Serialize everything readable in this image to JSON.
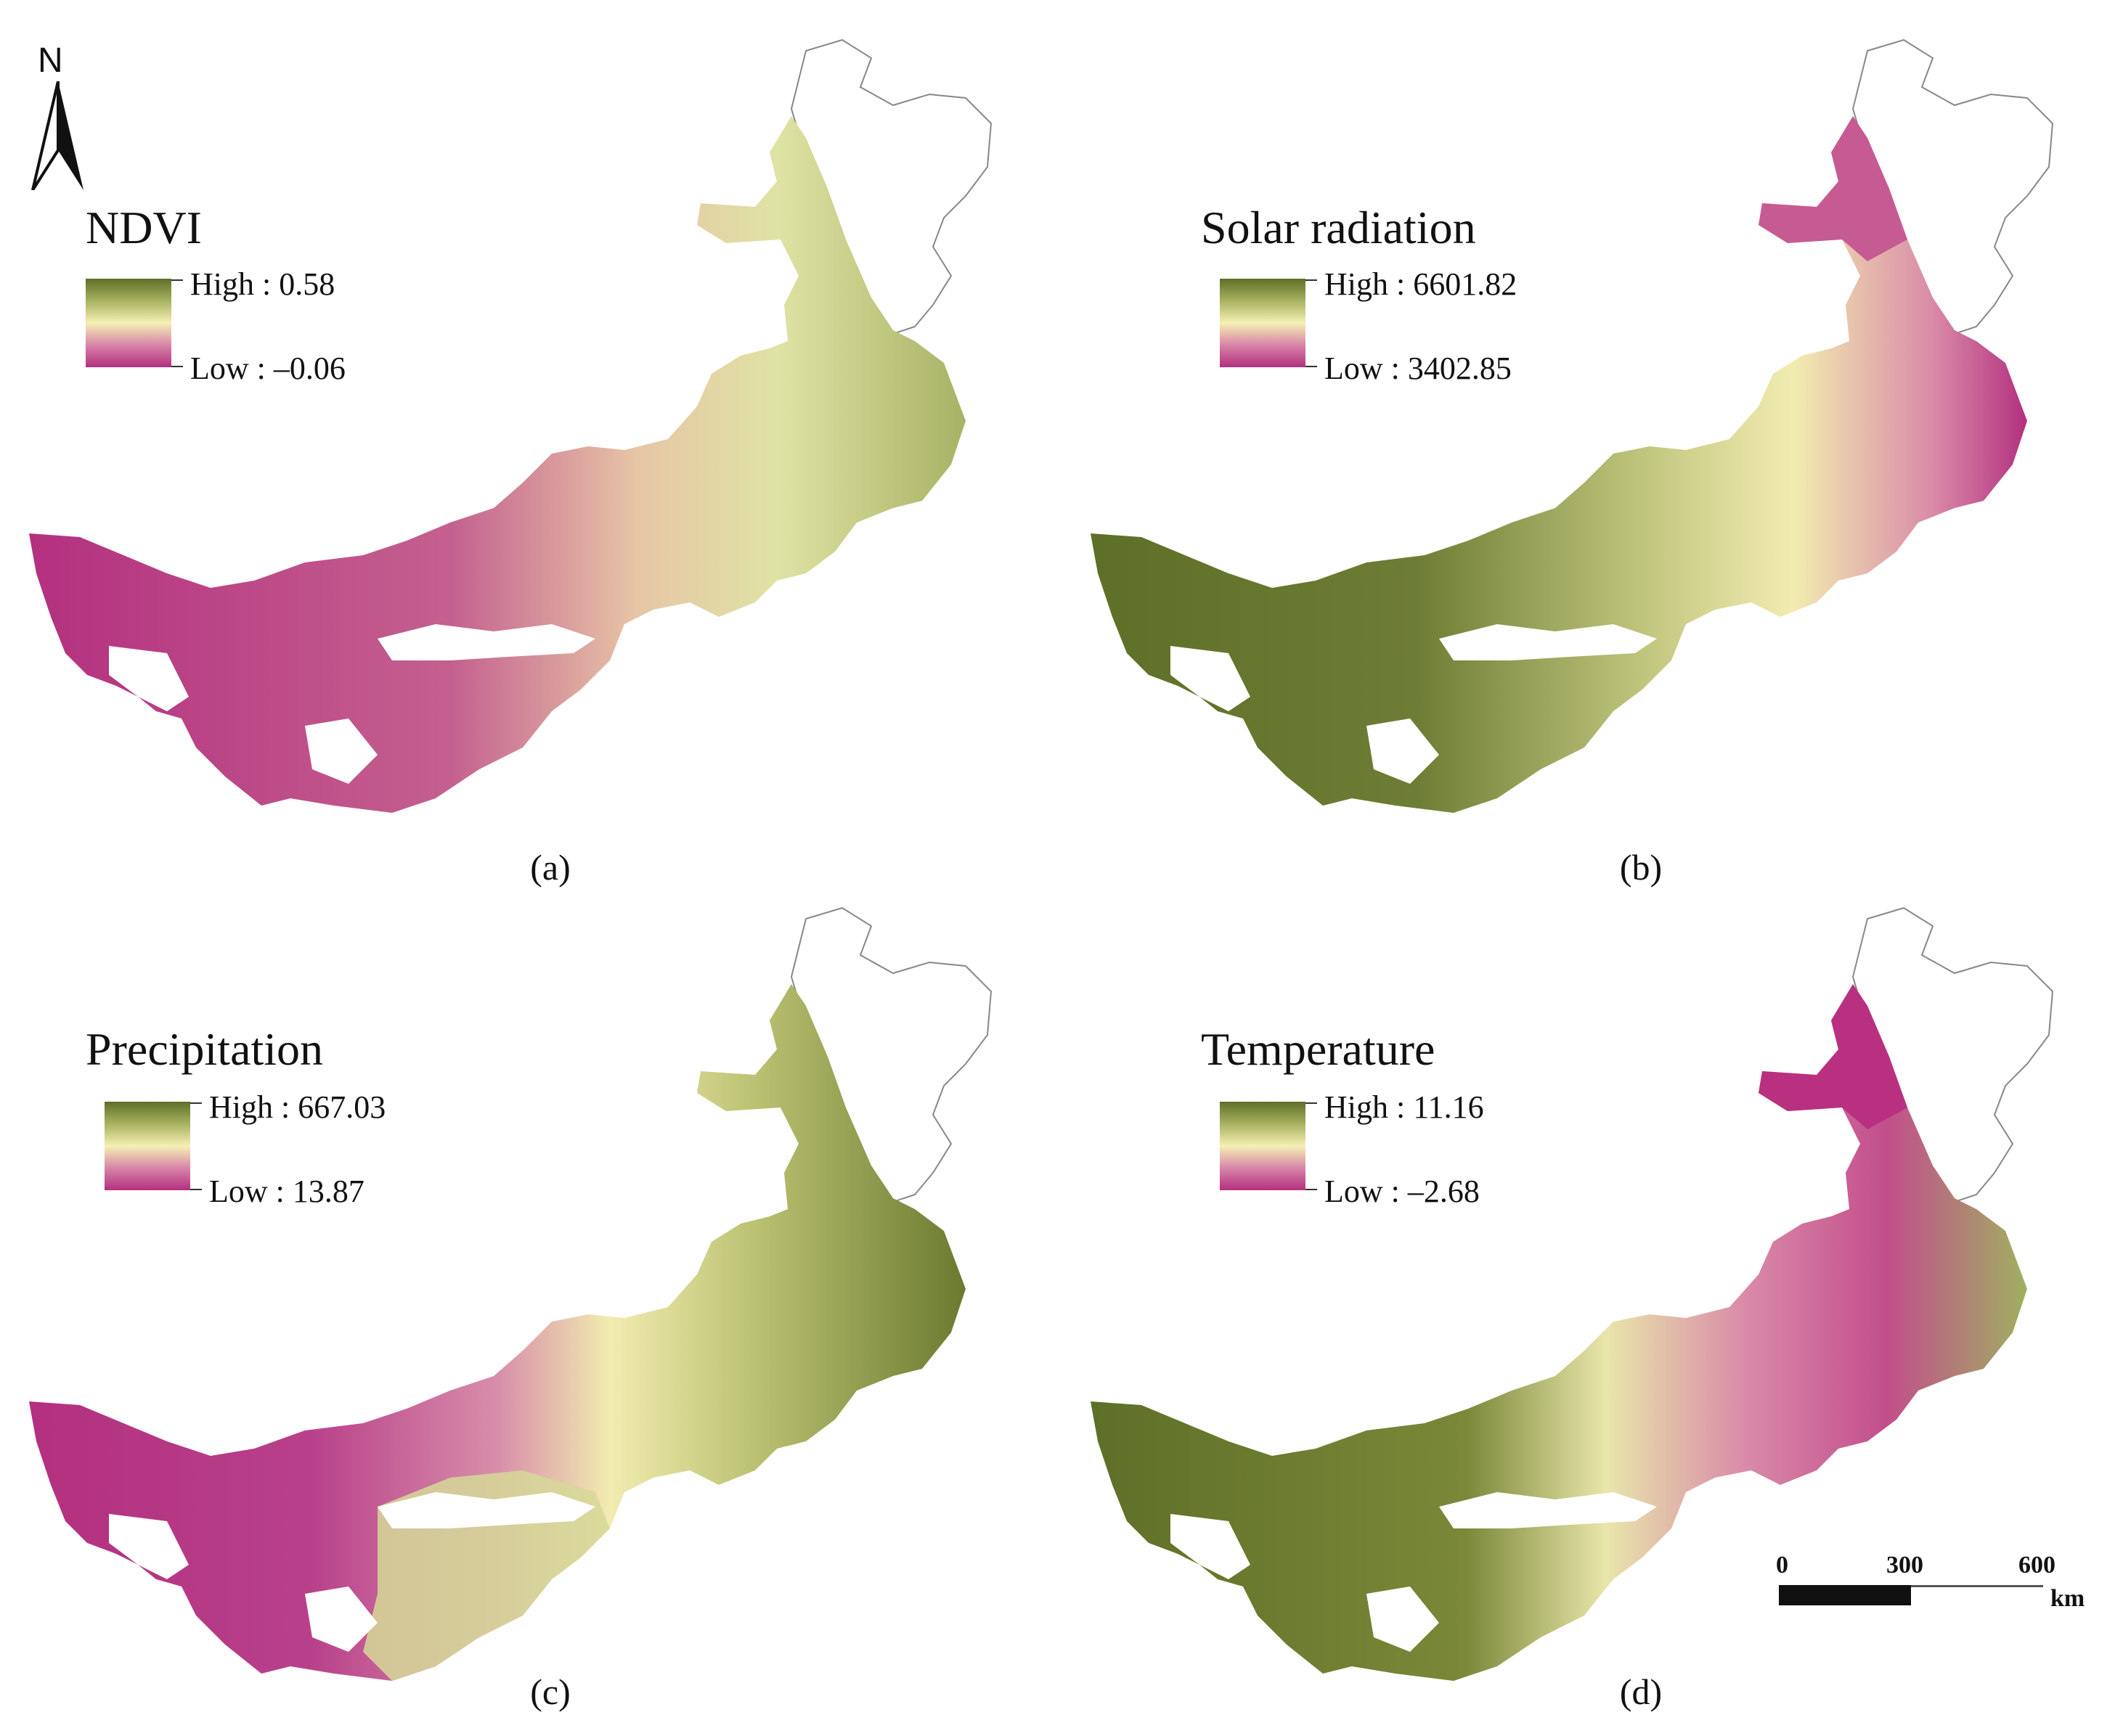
{
  "north_arrow": {
    "label": "N"
  },
  "panels": [
    {
      "id": "a",
      "title": "NDVI",
      "high": "High : 0.58",
      "low": "Low : –0.06",
      "caption": "(a)",
      "palette": {
        "low": "#b3307f",
        "mid": "#f5f0b4",
        "high": "#5e6f28"
      }
    },
    {
      "id": "b",
      "title": "Solar radiation",
      "high": "High : 6601.82",
      "low": "Low : 3402.85",
      "caption": "(b)",
      "palette": {
        "low": "#b3307f",
        "mid": "#f5f0b4",
        "high": "#5e6f28"
      }
    },
    {
      "id": "c",
      "title": "Precipitation",
      "high": "High : 667.03",
      "low": "Low : 13.87",
      "caption": "(c)",
      "palette": {
        "low": "#b3307f",
        "mid": "#f5f0b4",
        "high": "#5e6f28"
      }
    },
    {
      "id": "d",
      "title": "Temperature",
      "high": "High : 11.16",
      "low": "Low : –2.68",
      "caption": "(d)",
      "palette": {
        "low": "#b3307f",
        "mid": "#f5f0b4",
        "high": "#5e6f28"
      }
    }
  ],
  "scale_bar": {
    "ticks": [
      "0",
      "300",
      "600"
    ],
    "unit": "km"
  }
}
